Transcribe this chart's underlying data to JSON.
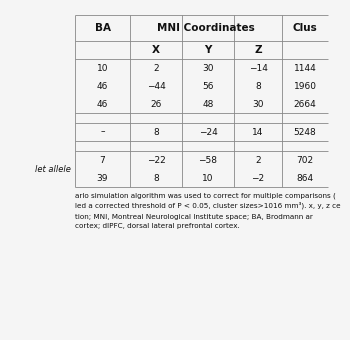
{
  "rows": [
    [
      "10",
      "2",
      "30",
      "−14",
      "1144"
    ],
    [
      "46",
      "−44",
      "56",
      "8",
      "1960"
    ],
    [
      "46",
      "26",
      "48",
      "30",
      "2664"
    ],
    [
      "–",
      "8",
      "−24",
      "14",
      "5248"
    ],
    [
      "7",
      "−22",
      "−58",
      "2",
      "702"
    ],
    [
      "39",
      "8",
      "10",
      "−2",
      "864"
    ]
  ],
  "row_groups": [
    3,
    1,
    2
  ],
  "left_label_group2": "",
  "left_label_group3": "let allele",
  "footnote_lines": [
    "arlo simulation algorithm was used to correct for multiple comparisons (",
    "led a corrected threshold of P < 0.05, cluster sizes>1016 mm³). x, y, z ce",
    "",
    "tion; MNI, Montreal Neurological Institute space; BA, Brodmann ar",
    "cortex; dlPFC, dorsal lateral prefrontal cortex."
  ],
  "bg_color": "#f5f5f5",
  "line_color": "#888888",
  "text_color": "#111111",
  "font_size": 6.5,
  "header_font_size": 7.5,
  "footnote_font_size": 5.2
}
